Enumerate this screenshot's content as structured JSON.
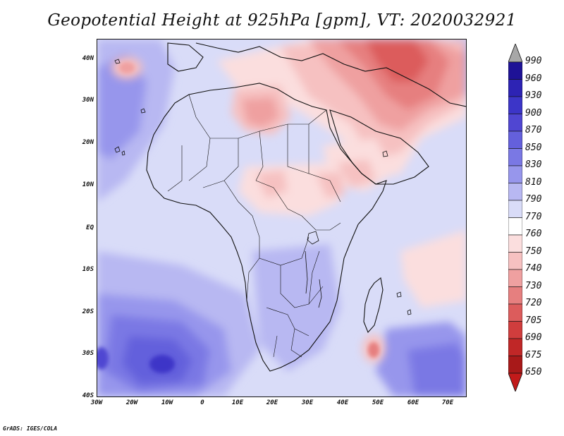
{
  "title": "Geopotential Height at 925hPa [gpm], VT: 2020032921",
  "credit": "GrADS: IGES/COLA",
  "map": {
    "variable": "Geopotential Height",
    "level": "925hPa",
    "units": "gpm",
    "valid_time": "2020032921",
    "lat_labels": [
      "40N",
      "30N",
      "20N",
      "10N",
      "EQ",
      "10S",
      "20S",
      "30S",
      "40S"
    ],
    "lon_labels": [
      "30W",
      "20W",
      "10W",
      "0",
      "10E",
      "20E",
      "30E",
      "40E",
      "50E",
      "60E",
      "70E"
    ]
  },
  "colorbar": {
    "levels": [
      "990",
      "960",
      "930",
      "900",
      "870",
      "850",
      "830",
      "810",
      "790",
      "770",
      "760",
      "750",
      "740",
      "730",
      "720",
      "705",
      "690",
      "675",
      "650"
    ],
    "colors": [
      "#a7a7a7",
      "#1e1296",
      "#2d23b4",
      "#3c35c8",
      "#5046d2",
      "#6460dc",
      "#7a78e4",
      "#9796ec",
      "#b8b8f2",
      "#d9dcf8",
      "#ffffff",
      "#fbdede",
      "#f6c1c1",
      "#efa0a0",
      "#e67f7f",
      "#dc5c5c",
      "#d03d3d",
      "#c02727",
      "#a81919",
      "#c21a1a"
    ]
  }
}
